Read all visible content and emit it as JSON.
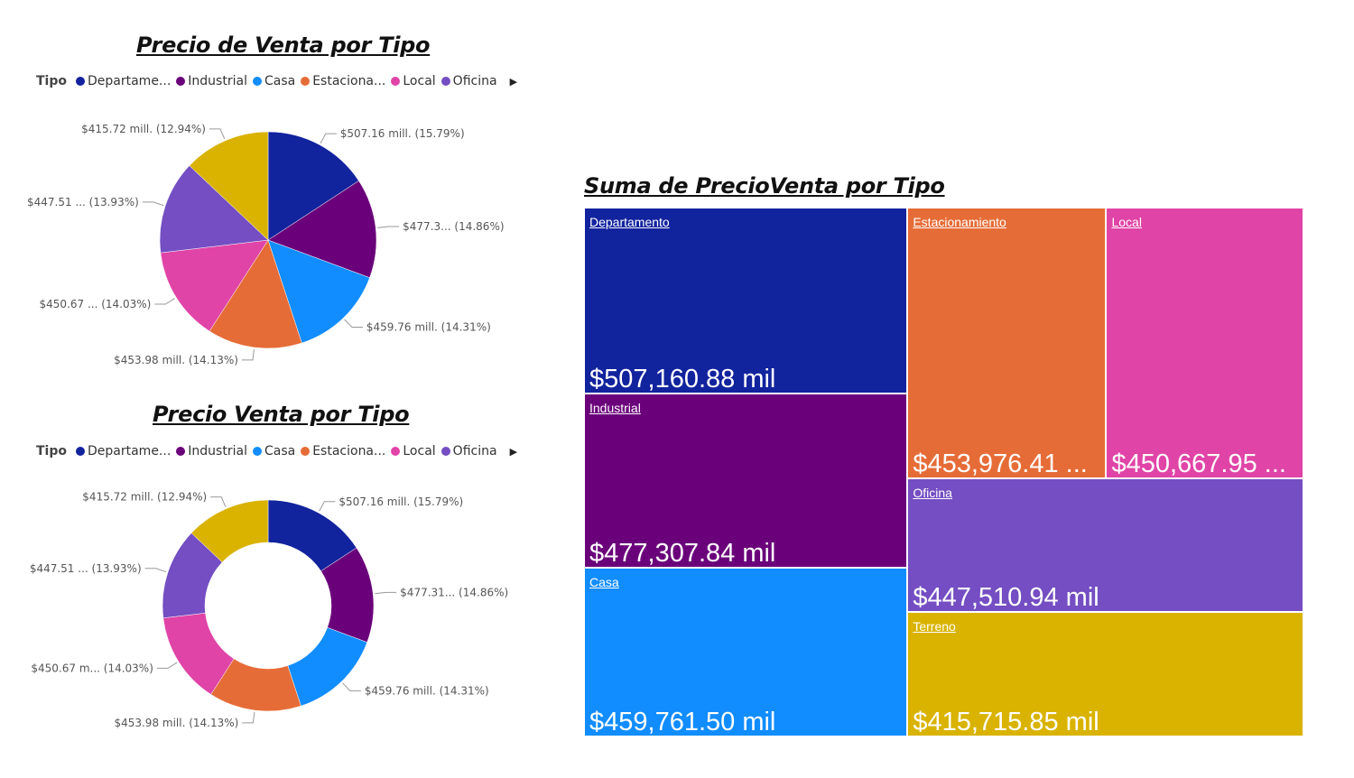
{
  "legend_title": "Tipo",
  "legend_items": [
    {
      "label": "Departame...",
      "color": "#12239E"
    },
    {
      "label": "Industrial",
      "color": "#6B007B"
    },
    {
      "label": "Casa",
      "color": "#118DFF"
    },
    {
      "label": "Estaciona...",
      "color": "#E66C37"
    },
    {
      "label": "Local",
      "color": "#E044A7"
    },
    {
      "label": "Oficina",
      "color": "#744EC2"
    }
  ],
  "chart_data": [
    {
      "type": "pie",
      "title": "Precio de Venta por Tipo",
      "categories": [
        "Departamento",
        "Industrial",
        "Casa",
        "Estacionamiento",
        "Local",
        "Oficina",
        "Terreno"
      ],
      "values": [
        507.16,
        477.31,
        459.76,
        453.98,
        450.67,
        447.51,
        415.72
      ],
      "colors": [
        "#12239E",
        "#6B007B",
        "#118DFF",
        "#E66C37",
        "#E044A7",
        "#744EC2",
        "#D9B300"
      ],
      "data_labels": [
        "$507.16 mill. (15.79%)",
        "$477.3... (14.86%)",
        "$459.76 mill. (14.31%)",
        "$453.98 mill. (14.13%)",
        "$450.67 ... (14.03%)",
        "$447.51 ... (13.93%)",
        "$415.72 mill. (12.94%)"
      ]
    },
    {
      "type": "donut",
      "title": "Precio Venta por Tipo",
      "categories": [
        "Departamento",
        "Industrial",
        "Casa",
        "Estacionamiento",
        "Local",
        "Oficina",
        "Terreno"
      ],
      "values": [
        507.16,
        477.31,
        459.76,
        453.98,
        450.67,
        447.51,
        415.72
      ],
      "colors": [
        "#12239E",
        "#6B007B",
        "#118DFF",
        "#E66C37",
        "#E044A7",
        "#744EC2",
        "#D9B300"
      ],
      "data_labels": [
        "$507.16 mill. (15.79%)",
        "$477.31... (14.86%)",
        "$459.76 mill. (14.31%)",
        "$453.98 mill. (14.13%)",
        "$450.67 m... (14.03%)",
        "$447.51 ... (13.93%)",
        "$415.72 mill. (12.94%)"
      ]
    },
    {
      "type": "treemap",
      "title": "Suma de PrecioVenta por Tipo",
      "items": [
        {
          "name": "Departamento",
          "value": 507160.88,
          "label": "$507,160.88 mil",
          "color": "#12239E"
        },
        {
          "name": "Industrial",
          "value": 477307.84,
          "label": "$477,307.84 mil",
          "color": "#6B007B"
        },
        {
          "name": "Casa",
          "value": 459761.5,
          "label": "$459,761.50 mil",
          "color": "#118DFF"
        },
        {
          "name": "Estacionamiento",
          "value": 453976.41,
          "label": "$453,976.41 ...",
          "color": "#E66C37"
        },
        {
          "name": "Local",
          "value": 450667.95,
          "label": "$450,667.95 ...",
          "color": "#E044A7"
        },
        {
          "name": "Oficina",
          "value": 447510.94,
          "label": "$447,510.94 mil",
          "color": "#744EC2"
        },
        {
          "name": "Terreno",
          "value": 415715.85,
          "label": "$415,715.85 mil",
          "color": "#D9B300"
        }
      ]
    }
  ]
}
